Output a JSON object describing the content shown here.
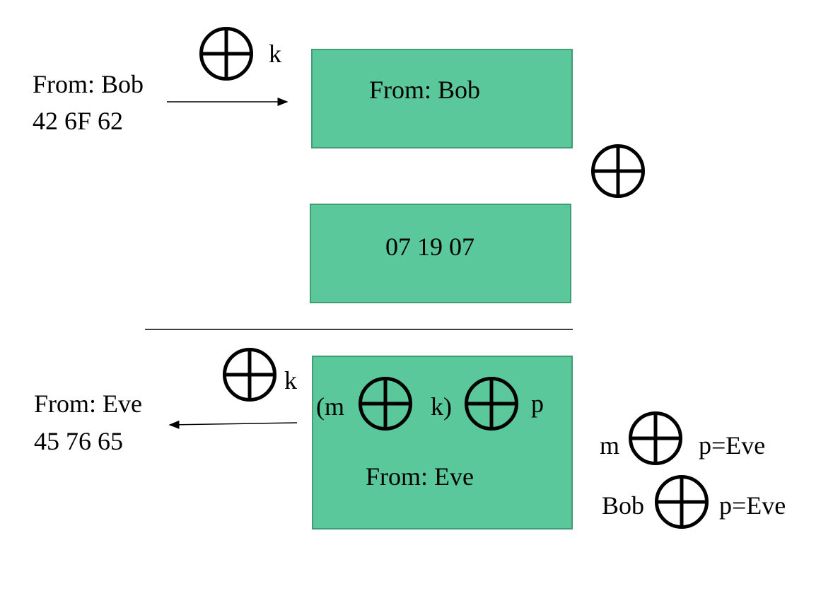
{
  "top": {
    "sender_label": "From: Bob",
    "sender_hex": "42 6F 62",
    "key_label": "k",
    "box1_text": "From: Bob",
    "box2_text": "07 19 07"
  },
  "bottom": {
    "receiver_label": "From: Eve",
    "receiver_hex": "45 76 65",
    "key_label": "k",
    "expr_open_m": "(m",
    "expr_k_close": "k)",
    "expr_p": "p",
    "box_text": "From: Eve",
    "eq1_m": "m",
    "eq1_rhs": "p=Eve",
    "eq2_bob": "Bob",
    "eq2_rhs": "p=Eve"
  },
  "colors": {
    "box_fill": "#5bc89b",
    "box_border": "#3f9c74"
  },
  "icons": [
    "xor-circled-plus-icon"
  ]
}
